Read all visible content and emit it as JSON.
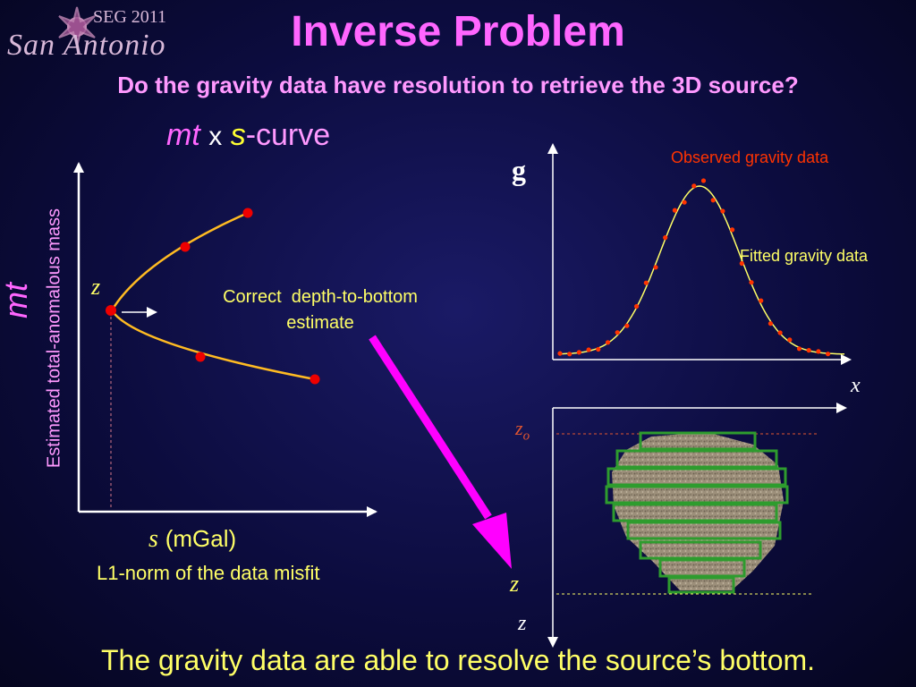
{
  "logo": {
    "line1": "SEG 2011",
    "line2": "San Antonio"
  },
  "title": "Inverse Problem",
  "subtitle": "Do the gravity data have resolution to retrieve the 3D source?",
  "curve_title": {
    "mt": "mt",
    "times": "x",
    "s": "s",
    "suffix": "-curve"
  },
  "left_plot": {
    "y_axis_label": "Estimated total-anomalous mass",
    "y_symbol": "mt",
    "x_symbol": "s",
    "x_unit": "(mGal)",
    "x_caption": "L1-norm of the data misfit",
    "z_label": "z",
    "annotation_line1": "Correct  depth-to-bottom",
    "annotation_line2": "estimate"
  },
  "gravity_plot": {
    "y_label": "g",
    "x_label": "x",
    "observed_label": "Observed gravity data",
    "fitted_label": "Fitted gravity data"
  },
  "section_plot": {
    "z0_label": "z",
    "z0_sub": "o",
    "z_bottom_label": "z",
    "z_axis_label": "z"
  },
  "conclusion": "The gravity data are able to resolve the source’s bottom.",
  "colors": {
    "title": "#ff66ff",
    "subtitle": "#ff99ff",
    "yellow_text": "#ffff66",
    "red_text": "#ff3300",
    "curve": "#ffbb22",
    "points": "#ee0000",
    "arrow": "#ff00ff",
    "prism_outline": "#2e9c2e"
  }
}
